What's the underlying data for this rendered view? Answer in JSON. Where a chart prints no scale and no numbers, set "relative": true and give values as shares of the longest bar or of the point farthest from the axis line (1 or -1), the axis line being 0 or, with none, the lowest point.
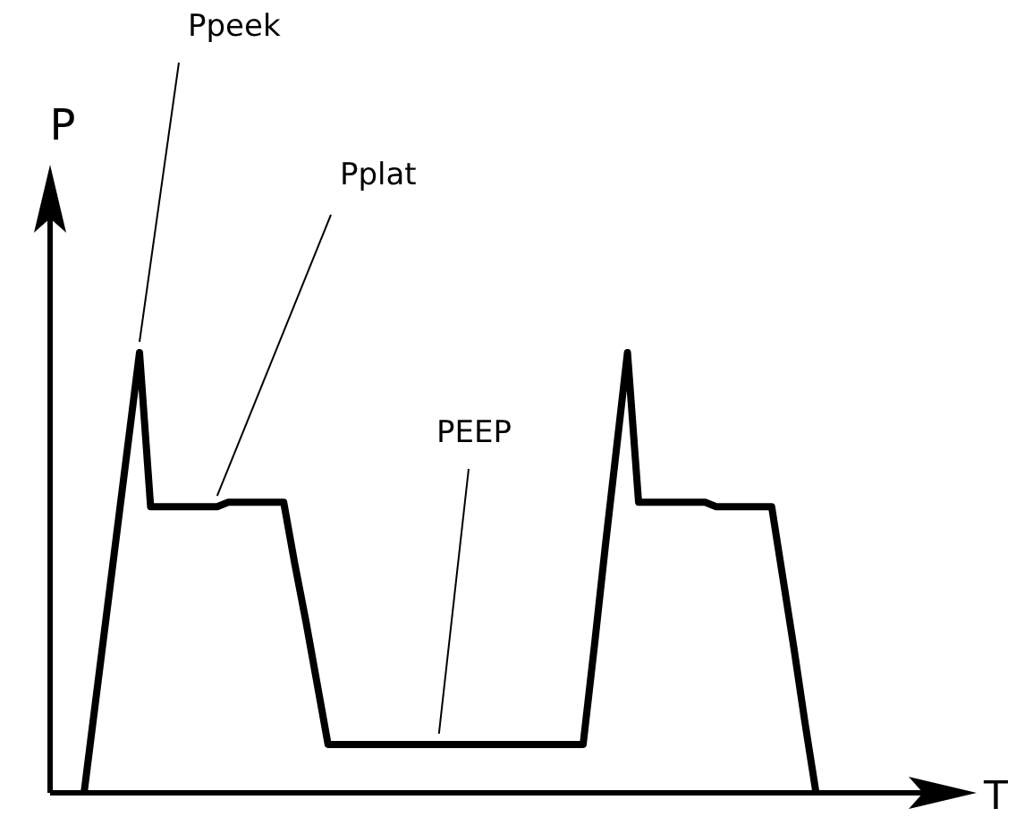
{
  "chart_data": {
    "type": "line",
    "relative": true,
    "xlabel": "T",
    "ylabel": "P",
    "marker": "none",
    "line_style": "solid",
    "categories": [
      null,
      null,
      null,
      null,
      null,
      null,
      null,
      null,
      null,
      null,
      null,
      null,
      null,
      null,
      null,
      null,
      null,
      null,
      null,
      null,
      null,
      null,
      null,
      null,
      null,
      null,
      null,
      null,
      null,
      null,
      null,
      null,
      null,
      null,
      null,
      null,
      null,
      null,
      null,
      null,
      null,
      null,
      null,
      null,
      null,
      null,
      null,
      null,
      null,
      null,
      null,
      null,
      null,
      null,
      null,
      null,
      null,
      null,
      null,
      null,
      null,
      null,
      null,
      null,
      null,
      null,
      null
    ],
    "series": [
      {
        "color": "#000000",
        "values": [
          0,
          0.2,
          0.4,
          0.6,
          0.8,
          1,
          0.65,
          0.65,
          0.65,
          0.65,
          0.65,
          0.65,
          0.65,
          0.66,
          0.66,
          0.66,
          0.66,
          0.66,
          0.66,
          0.52,
          0.39,
          0.25,
          0.11,
          0.11,
          0.11,
          0.11,
          0.11,
          0.11,
          0.11,
          0.11,
          0.11,
          0.11,
          0.11,
          0.11,
          0.11,
          0.11,
          0.11,
          0.11,
          0.11,
          0.11,
          0.11,
          0.11,
          0.11,
          0.11,
          0.11,
          0.11,
          0.33,
          0.56,
          0.78,
          1,
          0.66,
          0.66,
          0.66,
          0.66,
          0.66,
          0.66,
          0.66,
          0.65,
          0.65,
          0.65,
          0.65,
          0.65,
          0.65,
          0.49,
          0.33,
          0.16,
          0
        ]
      }
    ],
    "annotations": [
      "Ppeek",
      "Pplat",
      "PEEP"
    ]
  }
}
